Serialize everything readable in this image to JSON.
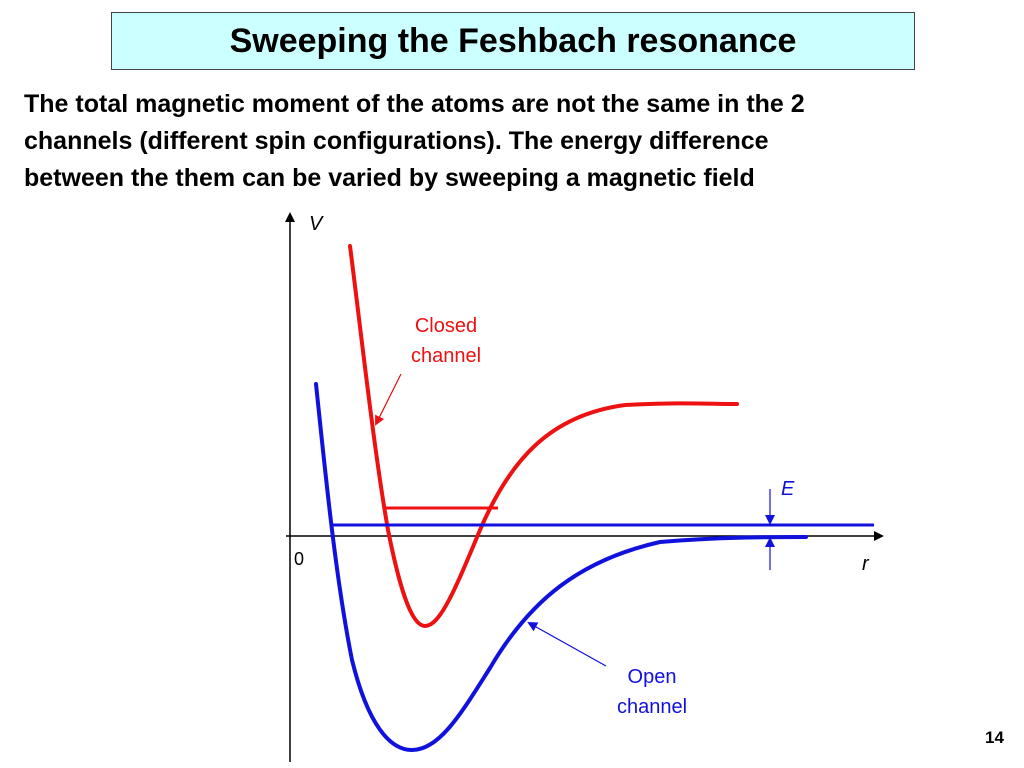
{
  "slide": {
    "title": "Sweeping the Feshbach resonance",
    "body_lines": [
      "The total magnetic moment of the atoms are not the same in the 2",
      "channels (different spin configurations). The energy difference",
      "between the them can be varied by sweeping a magnetic field"
    ],
    "page_number": "14"
  },
  "diagram": {
    "y_axis_label": "V",
    "x_axis_label": "r",
    "origin_label": "0",
    "energy_label": "E",
    "closed_channel_label_lines": [
      "Closed",
      "channel"
    ],
    "open_channel_label_lines": [
      "Open",
      "channel"
    ],
    "colors": {
      "closed_channel": "#ee1111",
      "open_channel": "#1111dd",
      "axes": "#000000"
    }
  }
}
